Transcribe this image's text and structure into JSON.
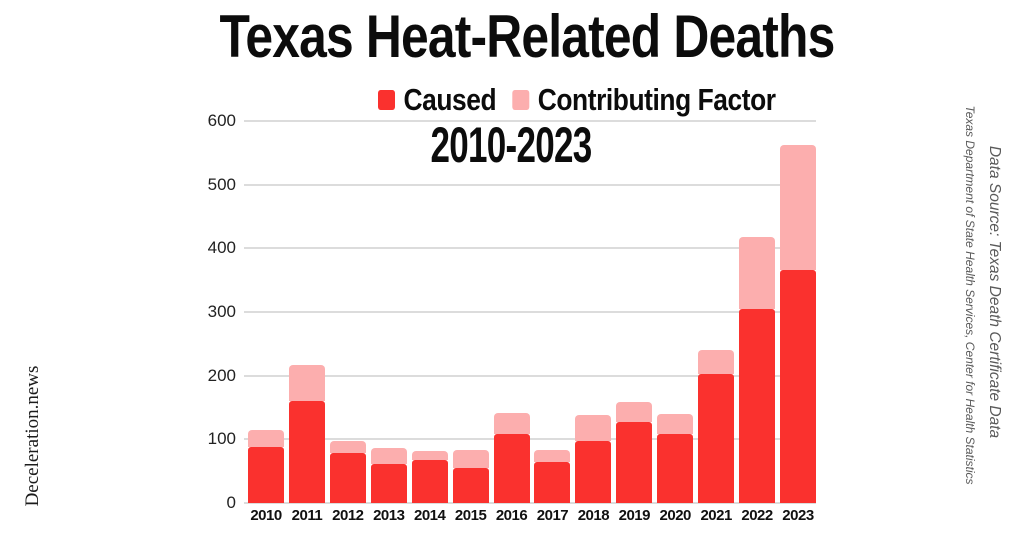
{
  "header": {
    "title": "Texas Heat-Related Deaths",
    "subtitle": "2010-2023"
  },
  "legend": {
    "items": [
      {
        "label": "Caused",
        "color": "#fa312e"
      },
      {
        "label": "Contributing Factor",
        "color": "#fcaeae"
      }
    ]
  },
  "side_notes": {
    "left_watermark": "Deceleration.news",
    "right_source_primary": "Data Source: Texas Death Certificate Data",
    "right_source_secondary": "Texas Department of State Health Services, Center for Health Statistics"
  },
  "colors": {
    "caused": "#fa312e",
    "contributing": "#fcaeae",
    "gridline": "#dcdcdc",
    "text": "#0c0c0c",
    "source_text": "#5a5a5a"
  },
  "chart_data": {
    "type": "bar",
    "stacked": true,
    "title": "Texas Heat-Related Deaths",
    "subtitle": "2010-2023",
    "categories": [
      "2010",
      "2011",
      "2012",
      "2013",
      "2014",
      "2015",
      "2016",
      "2017",
      "2018",
      "2019",
      "2020",
      "2021",
      "2022",
      "2023"
    ],
    "series": [
      {
        "name": "Caused",
        "color": "#fa312e",
        "values": [
          88,
          160,
          78,
          61,
          68,
          55,
          108,
          65,
          98,
          127,
          109,
          203,
          305,
          366
        ]
      },
      {
        "name": "Contributing Factor",
        "color": "#fcaeae",
        "values": [
          27,
          57,
          20,
          25,
          13,
          29,
          34,
          19,
          40,
          32,
          31,
          38,
          113,
          197
        ]
      }
    ],
    "stack_totals": [
      115,
      217,
      98,
      86,
      81,
      84,
      142,
      84,
      138,
      159,
      140,
      241,
      418,
      563
    ],
    "xlabel": "",
    "ylabel": "",
    "ylim": [
      0,
      600
    ],
    "yticks": [
      0,
      100,
      200,
      300,
      400,
      500,
      600
    ],
    "grid": true,
    "legend_position": "top"
  }
}
